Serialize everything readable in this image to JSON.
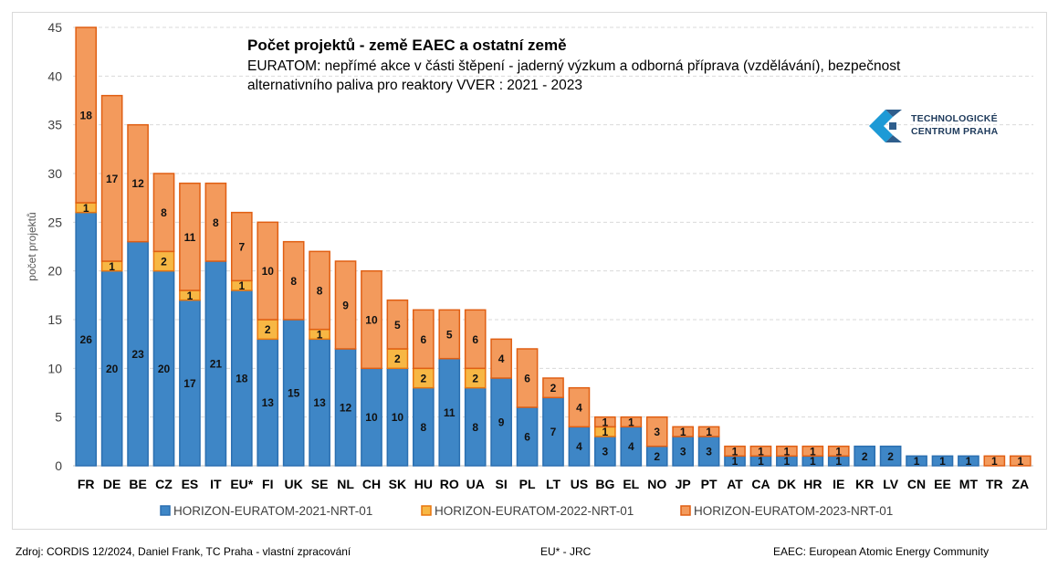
{
  "chart_data": {
    "type": "bar",
    "stacked": true,
    "title": "Počet projektů - země EAEC a ostatní země",
    "subtitle_lines": [
      "EURATOM: nepřímé akce v části štěpení - jaderný výzkum a odborná příprava (vzdělávání), bezpečnost",
      "alternativního paliva pro reaktory VVER : 2021 - 2023"
    ],
    "ylabel": "počet projektů",
    "xlabel": "",
    "ylim": [
      0,
      45
    ],
    "yticks": [
      0,
      5,
      10,
      15,
      20,
      25,
      30,
      35,
      40,
      45
    ],
    "grid": true,
    "legend_position": "bottom",
    "categories": [
      "FR",
      "DE",
      "BE",
      "CZ",
      "ES",
      "IT",
      "EU*",
      "FI",
      "UK",
      "SE",
      "NL",
      "CH",
      "SK",
      "HU",
      "RO",
      "UA",
      "SI",
      "PL",
      "LT",
      "US",
      "BG",
      "EL",
      "NO",
      "JP",
      "PT",
      "AT",
      "CA",
      "DK",
      "HR",
      "IE",
      "KR",
      "LV",
      "CN",
      "EE",
      "MT",
      "TR",
      "ZA"
    ],
    "series": [
      {
        "name": "HORIZON-EURATOM-2021-NRT-01",
        "color": "#3e86c6",
        "stroke": "#2b6fb0",
        "values": [
          26,
          20,
          23,
          20,
          17,
          21,
          18,
          13,
          15,
          13,
          12,
          10,
          10,
          8,
          11,
          8,
          9,
          6,
          7,
          4,
          3,
          4,
          2,
          3,
          3,
          1,
          1,
          1,
          1,
          1,
          2,
          2,
          1,
          1,
          1,
          0,
          0
        ]
      },
      {
        "name": "HORIZON-EURATOM-2022-NRT-01",
        "color": "#f7b744",
        "stroke": "#e8760f",
        "values": [
          1,
          1,
          0,
          2,
          1,
          0,
          1,
          2,
          0,
          1,
          0,
          0,
          2,
          2,
          0,
          2,
          0,
          0,
          0,
          0,
          1,
          0,
          0,
          0,
          0,
          0,
          0,
          0,
          0,
          0,
          0,
          0,
          0,
          0,
          0,
          0,
          0
        ]
      },
      {
        "name": "HORIZON-EURATOM-2023-NRT-01",
        "color": "#f39a5c",
        "stroke": "#e05f13",
        "values": [
          18,
          17,
          12,
          8,
          11,
          8,
          7,
          10,
          8,
          8,
          9,
          10,
          5,
          6,
          5,
          6,
          4,
          6,
          2,
          4,
          1,
          1,
          3,
          1,
          1,
          1,
          1,
          1,
          1,
          1,
          0,
          0,
          0,
          0,
          0,
          1,
          1
        ]
      }
    ]
  },
  "logo": {
    "line1": "TECHNOLOGICKÉ",
    "line2": "CENTRUM PRAHA"
  },
  "footer": {
    "source": "Zdroj: CORDIS 12/2024, Daniel Frank, TC Praha - vlastní zpracování",
    "note": "EU* - JRC",
    "eaec": "EAEC: European Atomic Energy Community"
  }
}
